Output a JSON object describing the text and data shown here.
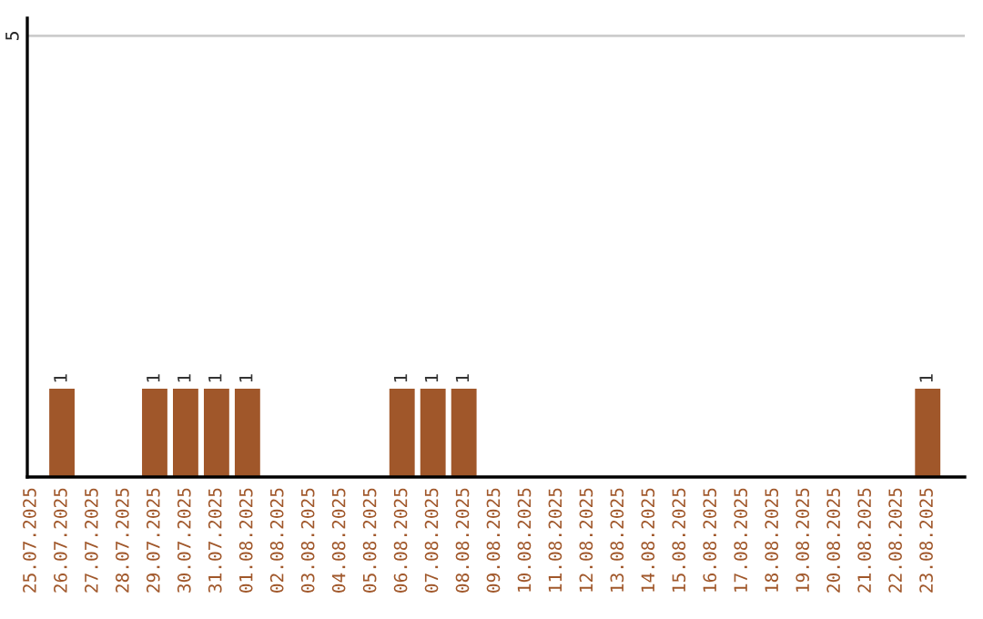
{
  "chart_data": {
    "type": "bar",
    "categories": [
      "25.07.2025",
      "26.07.2025",
      "27.07.2025",
      "28.07.2025",
      "29.07.2025",
      "30.07.2025",
      "31.07.2025",
      "01.08.2025",
      "02.08.2025",
      "03.08.2025",
      "04.08.2025",
      "05.08.2025",
      "06.08.2025",
      "07.08.2025",
      "08.08.2025",
      "09.08.2025",
      "10.08.2025",
      "11.08.2025",
      "12.08.2025",
      "13.08.2025",
      "14.08.2025",
      "15.08.2025",
      "16.08.2025",
      "17.08.2025",
      "18.08.2025",
      "19.08.2025",
      "20.08.2025",
      "21.08.2025",
      "22.08.2025",
      "23.08.2025"
    ],
    "values": [
      0,
      1,
      0,
      0,
      1,
      1,
      1,
      1,
      0,
      0,
      0,
      0,
      1,
      1,
      1,
      0,
      0,
      0,
      0,
      0,
      0,
      0,
      0,
      0,
      0,
      0,
      0,
      0,
      0,
      1
    ],
    "value_labels": [
      null,
      "1",
      null,
      null,
      "1",
      "1",
      "1",
      "1",
      null,
      null,
      null,
      null,
      "1",
      "1",
      "1",
      null,
      null,
      null,
      null,
      null,
      null,
      null,
      null,
      null,
      null,
      null,
      null,
      null,
      null,
      "1"
    ],
    "color": "#a0572a",
    "ylim": [
      0,
      5.2
    ],
    "yticks": [
      5
    ],
    "grid": "y"
  }
}
